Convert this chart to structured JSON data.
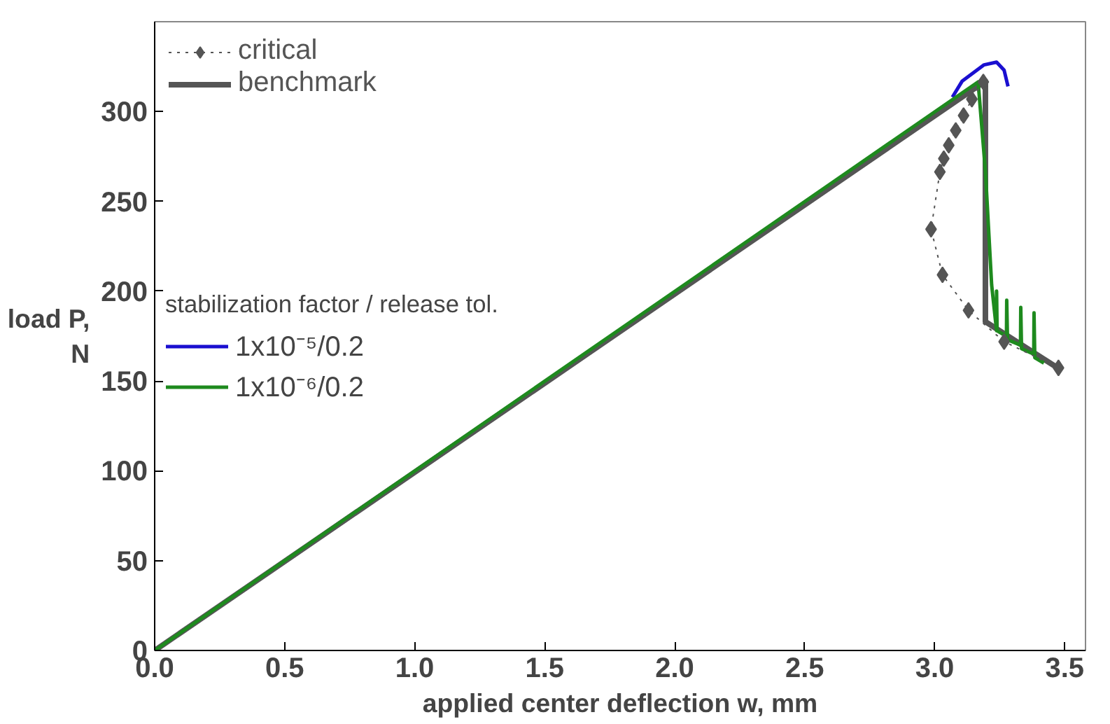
{
  "chart_data": {
    "type": "line",
    "xlabel": "applied center deflection w, mm",
    "ylabel": "load P,\nN",
    "legend_title": "stabilization factor / release tol.",
    "xlim": [
      0,
      3.58
    ],
    "ylim": [
      0,
      350
    ],
    "xticks": [
      {
        "value": 0,
        "label": "0.0"
      },
      0.5,
      {
        "value": 1,
        "label": "1.0"
      },
      1.5,
      {
        "value": 2,
        "label": "2.0"
      },
      2.5,
      {
        "value": 3,
        "label": "3.0"
      },
      3.5
    ],
    "yticks": [
      0,
      50,
      100,
      150,
      200,
      250,
      300
    ],
    "grid": false,
    "legend": "top left",
    "series": [
      {
        "name": "critical",
        "color": "#555555",
        "marker": "diamond",
        "line_style": "dotted",
        "x": [
          3.187,
          3.143,
          3.111,
          3.081,
          3.054,
          3.035,
          3.02,
          2.986,
          3.03,
          3.13,
          3.267,
          3.476
        ],
        "values": [
          316.5,
          306.9,
          297.8,
          289.5,
          281.2,
          273.8,
          266.4,
          234.5,
          209.1,
          189.3,
          171.9,
          157.3
        ]
      },
      {
        "name": "benchmark",
        "color": "#555555",
        "x": [
          0,
          3.195,
          3.195,
          3.476
        ],
        "values": [
          0,
          317,
          183,
          157
        ]
      },
      {
        "name": "1x10⁻⁵/0.2",
        "color": "#1a0fd0",
        "x": [
          3.068,
          3.106,
          3.19,
          3.238,
          3.267,
          3.282
        ],
        "values": [
          308,
          317,
          326,
          327.5,
          323,
          314
        ]
      },
      {
        "name": "1x10⁻⁶/0.2",
        "color": "#1e8a1e",
        "x": [
          0,
          3.167,
          3.195,
          3.219,
          3.238,
          3.238,
          3.24,
          3.276,
          3.277,
          3.28,
          3.33,
          3.331,
          3.334,
          3.381,
          3.382,
          3.385,
          3.42
        ],
        "values": [
          0,
          316.5,
          267,
          203.5,
          178,
          200,
          178,
          175,
          195,
          173,
          170,
          191,
          168,
          165,
          188,
          163,
          160
        ]
      }
    ]
  }
}
